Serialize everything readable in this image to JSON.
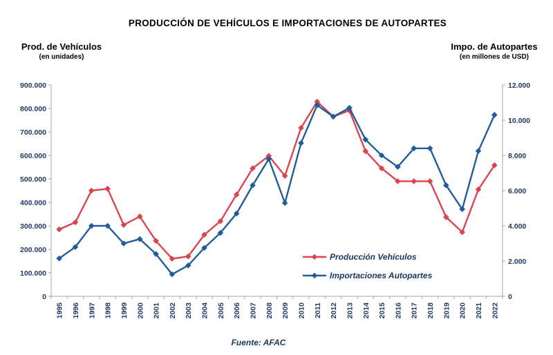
{
  "title": "PRODUCCIÓN DE VEHÍCULOS E IMPORTACIONES DE AUTOPARTES",
  "left_axis": {
    "label": "Prod. de Vehículos",
    "sublabel": "(en unidades)",
    "ticks": [
      "0",
      "100.000",
      "200.000",
      "300.000",
      "400.000",
      "500.000",
      "600.000",
      "700.000",
      "800.000",
      "900.000"
    ]
  },
  "right_axis": {
    "label": "Impo. de Autopartes",
    "sublabel": "(en millones de USD)",
    "ticks": [
      "0",
      "2.000",
      "4.000",
      "6.000",
      "8.000",
      "10.000",
      "12.000"
    ]
  },
  "legend": [
    {
      "label": "Producción Vehículos",
      "color": "#D9444F"
    },
    {
      "label": "Importaciones Autopartes",
      "color": "#1F5C99"
    }
  ],
  "source": "Fuente: AFAC",
  "colors": {
    "vehicles_series": "#D9444F",
    "autoparts_series": "#1F5C99",
    "axis_line": "#A6A6A6",
    "axis_text": "#1F3864",
    "legend_text": "#17375E"
  },
  "chart_data": {
    "type": "line",
    "title": "PRODUCCIÓN DE VEHÍCULOS E IMPORTACIONES DE AUTOPARTES",
    "categories": [
      "1995",
      "1996",
      "1997",
      "1998",
      "1999",
      "2000",
      "2001",
      "2002",
      "2003",
      "2004",
      "2005",
      "2006",
      "2007",
      "2008",
      "2009",
      "2010",
      "2011",
      "2012",
      "2013",
      "2014",
      "2015",
      "2016",
      "2017",
      "2018",
      "2019",
      "2020",
      "2021",
      "2022"
    ],
    "series": [
      {
        "name": "Producción Vehículos",
        "axis": "left",
        "units": "unidades",
        "color": "#D9444F",
        "values": [
          285000,
          315000,
          450000,
          458000,
          304000,
          340000,
          236000,
          160000,
          170000,
          262000,
          320000,
          433000,
          545000,
          598000,
          513000,
          717000,
          829000,
          765000,
          791000,
          618000,
          545000,
          490000,
          490000,
          490000,
          337000,
          273000,
          455000,
          558000
        ]
      },
      {
        "name": "Importaciones Autopartes",
        "axis": "right",
        "units": "millones de USD",
        "color": "#1F5C99",
        "values": [
          2150,
          2800,
          4000,
          4000,
          3000,
          3250,
          2400,
          1250,
          1750,
          2750,
          3600,
          4700,
          6300,
          7800,
          5300,
          8700,
          10850,
          10200,
          10700,
          8900,
          8000,
          7350,
          8400,
          8400,
          6300,
          4950,
          8250,
          10300
        ]
      }
    ],
    "left_ylim": [
      0,
      900000
    ],
    "right_ylim": [
      0,
      12000
    ],
    "grid": false,
    "legend_position": "inside-lower-right",
    "marker": "diamond"
  }
}
